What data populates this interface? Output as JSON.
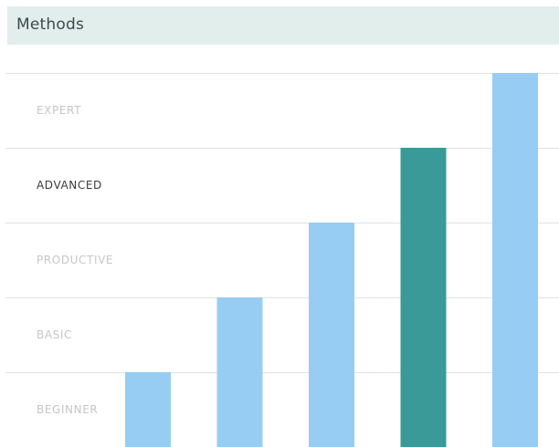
{
  "header": {
    "title": "Methods"
  },
  "chart_data": {
    "type": "bar",
    "title": "",
    "xlabel": "",
    "ylabel": "",
    "y_levels": [
      "BEGINNER",
      "BASIC",
      "PRODUCTIVE",
      "ADVANCED",
      "EXPERT"
    ],
    "highlighted_level": "ADVANCED",
    "values": [
      1,
      2,
      3,
      4,
      5
    ],
    "highlight_index": 3,
    "ylim": [
      0,
      5
    ],
    "grid": true
  },
  "colors": {
    "header_bg": "#e1eeec",
    "bar": "#97cdf2",
    "bar_highlight": "#3a9a98",
    "gridline": "#e2e2e2",
    "label_muted": "#c6c6c6",
    "label_active": "#3a3a3a"
  }
}
